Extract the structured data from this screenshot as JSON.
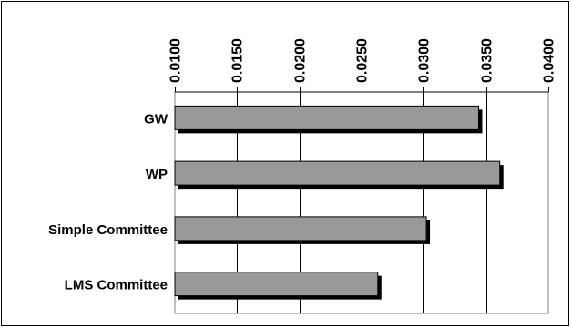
{
  "chart_data": {
    "type": "bar",
    "orientation": "horizontal",
    "title": "",
    "xlabel": "",
    "ylabel": "",
    "categories": [
      "GW",
      "WP",
      "Simple Committee",
      "LMS Committee"
    ],
    "values": [
      0.0344,
      0.0361,
      0.0302,
      0.0263
    ],
    "xlim": [
      0.01,
      0.04
    ],
    "ticks": [
      "0.0100",
      "0.0150",
      "0.0200",
      "0.0250",
      "0.0300",
      "0.0350",
      "0.0400"
    ],
    "tick_values": [
      0.01,
      0.015,
      0.02,
      0.025,
      0.03,
      0.035,
      0.04
    ],
    "axis_position": "top",
    "tick_label_rotation": "vertical",
    "grid": true,
    "legend": "none",
    "bar_color": "#999999",
    "shadow_color": "#000000"
  }
}
